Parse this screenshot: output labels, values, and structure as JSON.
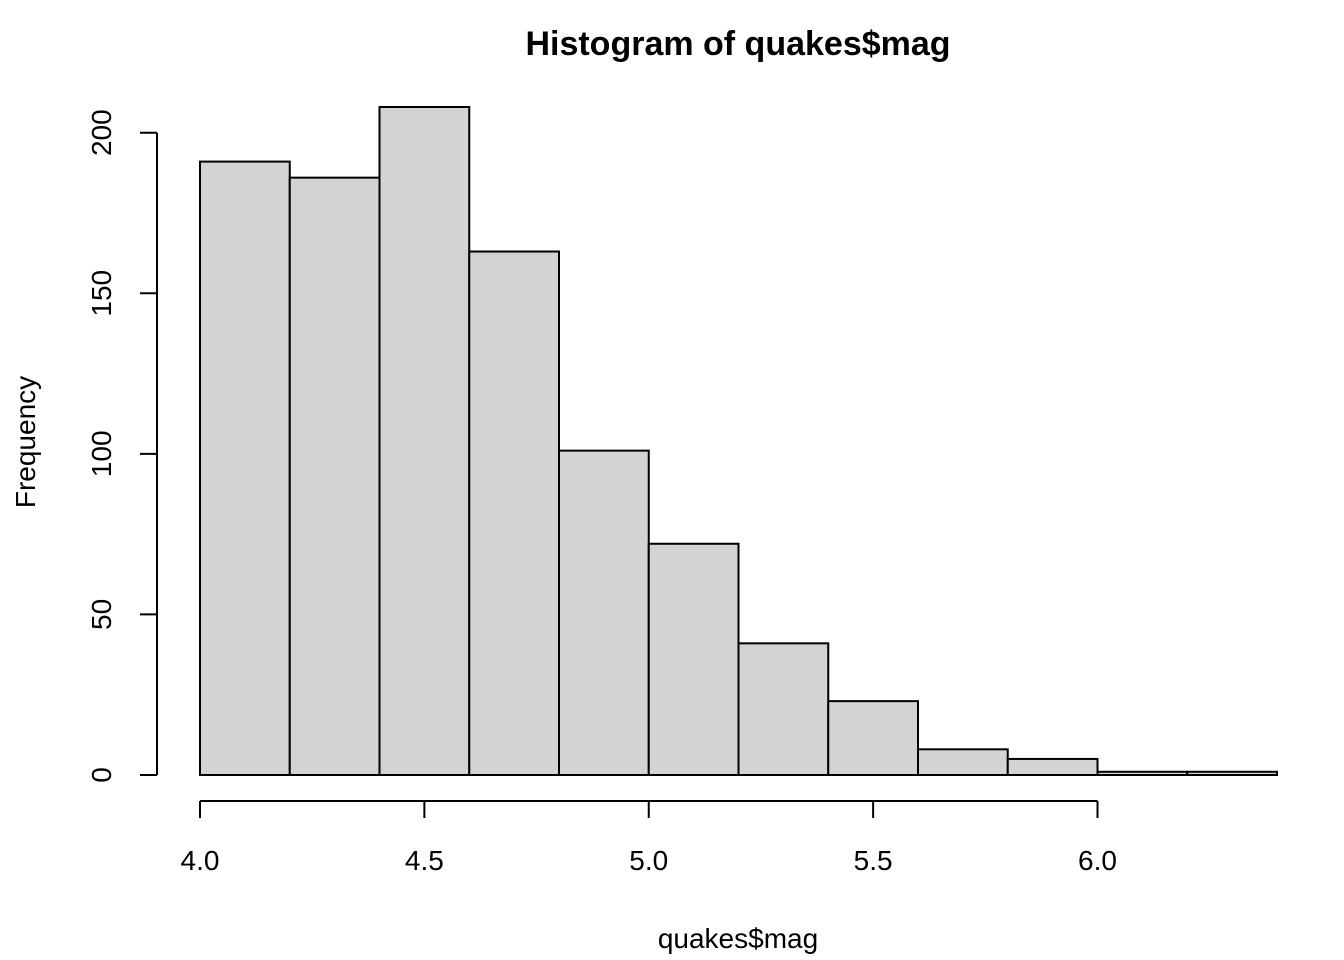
{
  "chart_data": {
    "type": "bar",
    "title": "Histogram of quakes$mag",
    "xlabel": "quakes$mag",
    "ylabel": "Frequency",
    "bins": [
      {
        "start": 4.0,
        "end": 4.2,
        "count": 191
      },
      {
        "start": 4.2,
        "end": 4.4,
        "count": 186
      },
      {
        "start": 4.4,
        "end": 4.6,
        "count": 208
      },
      {
        "start": 4.6,
        "end": 4.8,
        "count": 163
      },
      {
        "start": 4.8,
        "end": 5.0,
        "count": 101
      },
      {
        "start": 5.0,
        "end": 5.2,
        "count": 72
      },
      {
        "start": 5.2,
        "end": 5.4,
        "count": 41
      },
      {
        "start": 5.4,
        "end": 5.6,
        "count": 23
      },
      {
        "start": 5.6,
        "end": 5.8,
        "count": 8
      },
      {
        "start": 5.8,
        "end": 6.0,
        "count": 5
      },
      {
        "start": 6.0,
        "end": 6.2,
        "count": 1
      },
      {
        "start": 6.2,
        "end": 6.4,
        "count": 1
      }
    ],
    "xticks": [
      "4.0",
      "4.5",
      "5.0",
      "5.5",
      "6.0"
    ],
    "yticks": [
      "0",
      "50",
      "100",
      "150",
      "200"
    ],
    "xlim": [
      4.0,
      6.4
    ],
    "ylim": [
      0,
      208
    ],
    "grid": false,
    "bar_color": "#d3d3d3",
    "edge_color": "#000000"
  }
}
